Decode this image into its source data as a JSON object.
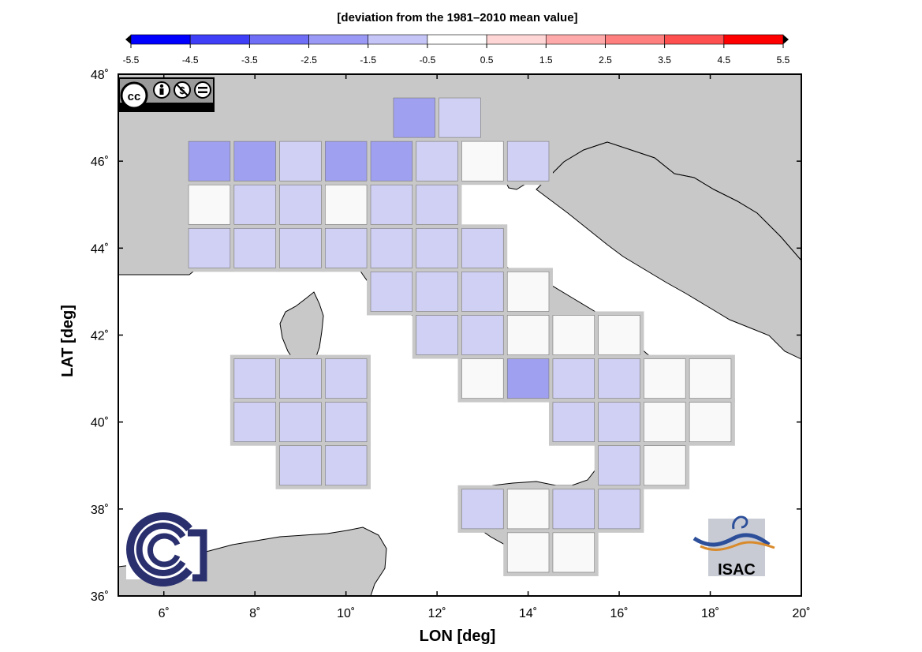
{
  "title": "[deviation from the 1981–2010 mean value]",
  "colorbar": {
    "ticks": [
      "-5.5",
      "-4.5",
      "-3.5",
      "-2.5",
      "-1.5",
      "-0.5",
      "0.5",
      "1.5",
      "2.5",
      "3.5",
      "4.5",
      "5.5"
    ],
    "colors": [
      "#0000ff",
      "#3f3ff8",
      "#6e6ef6",
      "#9a9af6",
      "#c5c5f8",
      "#ffffff",
      "#ffd6d6",
      "#ffaaaa",
      "#ff7f7f",
      "#ff5050",
      "#ff0000"
    ]
  },
  "axes": {
    "xlabel": "LON [deg]",
    "ylabel": "LAT [deg]",
    "xlim": [
      5,
      20
    ],
    "ylim": [
      36,
      48
    ],
    "xticks": [
      "6˚",
      "8˚",
      "10˚",
      "12˚",
      "14˚",
      "16˚",
      "18˚",
      "20˚"
    ],
    "yticks": [
      "36˚",
      "38˚",
      "40˚",
      "42˚",
      "44˚",
      "46˚",
      "48˚"
    ]
  },
  "license_badge": {
    "labels": [
      "BY",
      "NC",
      "ND"
    ],
    "icon": "cc-by-nc-nd-icon"
  },
  "logos": {
    "left": "cnr-logo",
    "right_text": "ISAC"
  },
  "colors": {
    "land": "#c8c8c8",
    "sea": "#ffffff",
    "cell_gap": "#c8c8c8"
  },
  "chart_data": {
    "type": "heatmap",
    "units": "deviation from the 1981–2010 mean value",
    "cell_size_deg": 1,
    "cells": [
      {
        "lon": 11.5,
        "lat": 47.0,
        "v": -2.5
      },
      {
        "lon": 12.5,
        "lat": 47.0,
        "v": -1.0
      },
      {
        "lon": 7.0,
        "lat": 46.0,
        "v": -2.0
      },
      {
        "lon": 8.0,
        "lat": 46.0,
        "v": -2.5
      },
      {
        "lon": 9.0,
        "lat": 46.0,
        "v": -1.0
      },
      {
        "lon": 10.0,
        "lat": 46.0,
        "v": -2.5
      },
      {
        "lon": 11.0,
        "lat": 46.0,
        "v": -2.5
      },
      {
        "lon": 12.0,
        "lat": 46.0,
        "v": -1.0
      },
      {
        "lon": 13.0,
        "lat": 46.0,
        "v": 0.0
      },
      {
        "lon": 14.0,
        "lat": 46.0,
        "v": -1.0
      },
      {
        "lon": 7.0,
        "lat": 45.0,
        "v": 0.0
      },
      {
        "lon": 8.0,
        "lat": 45.0,
        "v": -1.0
      },
      {
        "lon": 9.0,
        "lat": 45.0,
        "v": -1.0
      },
      {
        "lon": 10.0,
        "lat": 45.0,
        "v": 0.0
      },
      {
        "lon": 11.0,
        "lat": 45.0,
        "v": -1.0
      },
      {
        "lon": 12.0,
        "lat": 45.0,
        "v": -1.0
      },
      {
        "lon": 7.0,
        "lat": 44.0,
        "v": -1.0
      },
      {
        "lon": 8.0,
        "lat": 44.0,
        "v": -1.0
      },
      {
        "lon": 9.0,
        "lat": 44.0,
        "v": -1.0
      },
      {
        "lon": 10.0,
        "lat": 44.0,
        "v": -1.0
      },
      {
        "lon": 11.0,
        "lat": 44.0,
        "v": -1.0
      },
      {
        "lon": 12.0,
        "lat": 44.0,
        "v": -1.0
      },
      {
        "lon": 13.0,
        "lat": 44.0,
        "v": -1.0
      },
      {
        "lon": 11.0,
        "lat": 43.0,
        "v": -1.0
      },
      {
        "lon": 12.0,
        "lat": 43.0,
        "v": -1.0
      },
      {
        "lon": 13.0,
        "lat": 43.0,
        "v": -1.0
      },
      {
        "lon": 14.0,
        "lat": 43.0,
        "v": 0.0
      },
      {
        "lon": 12.0,
        "lat": 42.0,
        "v": -1.0
      },
      {
        "lon": 13.0,
        "lat": 42.0,
        "v": -1.0
      },
      {
        "lon": 14.0,
        "lat": 42.0,
        "v": 0.0
      },
      {
        "lon": 15.0,
        "lat": 42.0,
        "v": 0.0
      },
      {
        "lon": 16.0,
        "lat": 42.0,
        "v": 0.0
      },
      {
        "lon": 13.0,
        "lat": 41.0,
        "v": 0.0
      },
      {
        "lon": 14.0,
        "lat": 41.0,
        "v": -2.5
      },
      {
        "lon": 15.0,
        "lat": 41.0,
        "v": -1.0
      },
      {
        "lon": 16.0,
        "lat": 41.0,
        "v": -1.0
      },
      {
        "lon": 17.0,
        "lat": 41.0,
        "v": 0.0
      },
      {
        "lon": 18.0,
        "lat": 41.0,
        "v": 0.0
      },
      {
        "lon": 15.0,
        "lat": 40.0,
        "v": -1.0
      },
      {
        "lon": 16.0,
        "lat": 40.0,
        "v": -1.0
      },
      {
        "lon": 17.0,
        "lat": 40.0,
        "v": 0.0
      },
      {
        "lon": 18.0,
        "lat": 40.0,
        "v": 0.0
      },
      {
        "lon": 16.0,
        "lat": 39.0,
        "v": -1.0
      },
      {
        "lon": 17.0,
        "lat": 39.0,
        "v": 0.0
      },
      {
        "lon": 13.0,
        "lat": 38.0,
        "v": -1.0
      },
      {
        "lon": 14.0,
        "lat": 38.0,
        "v": 0.0
      },
      {
        "lon": 15.0,
        "lat": 38.0,
        "v": -1.0
      },
      {
        "lon": 16.0,
        "lat": 38.0,
        "v": -1.0
      },
      {
        "lon": 14.0,
        "lat": 37.0,
        "v": 0.0
      },
      {
        "lon": 15.0,
        "lat": 37.0,
        "v": 0.0
      },
      {
        "lon": 8.0,
        "lat": 41.0,
        "v": -1.0
      },
      {
        "lon": 9.0,
        "lat": 41.0,
        "v": -1.0
      },
      {
        "lon": 10.0,
        "lat": 41.0,
        "v": -1.0
      },
      {
        "lon": 8.0,
        "lat": 40.0,
        "v": -1.0
      },
      {
        "lon": 9.0,
        "lat": 40.0,
        "v": -1.0
      },
      {
        "lon": 10.0,
        "lat": 40.0,
        "v": -1.0
      },
      {
        "lon": 9.0,
        "lat": 39.0,
        "v": -1.0
      },
      {
        "lon": 10.0,
        "lat": 39.0,
        "v": -1.0
      }
    ]
  }
}
